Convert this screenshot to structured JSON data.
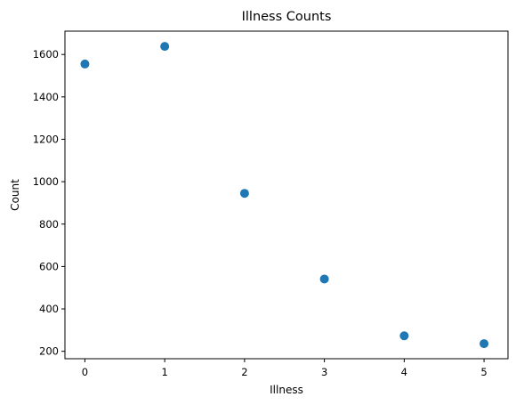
{
  "chart_data": {
    "type": "scatter",
    "title": "Illness Counts",
    "xlabel": "Illness",
    "ylabel": "Count",
    "x": [
      0,
      1,
      2,
      3,
      4,
      5
    ],
    "y": [
      1555,
      1638,
      945,
      541,
      273,
      236
    ],
    "xlim": [
      -0.25,
      5.3
    ],
    "ylim": [
      165,
      1710
    ],
    "xticks": [
      0,
      1,
      2,
      3,
      4,
      5
    ],
    "yticks": [
      200,
      400,
      600,
      800,
      1000,
      1200,
      1400,
      1600
    ],
    "grid": false,
    "marker_color": "#1f77b4"
  }
}
